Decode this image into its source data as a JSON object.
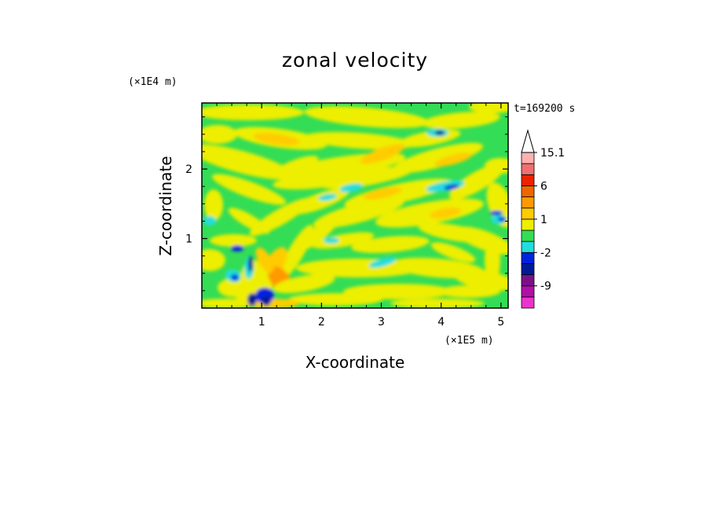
{
  "chart_data": {
    "type": "heatmap",
    "title": "zonal velocity",
    "xlabel": "X-coordinate",
    "ylabel": "Z-coordinate",
    "x_scale_note": "(×1E5 m)",
    "y_scale_note": "(×1E4 m)",
    "time_label": "t=169200 s",
    "x_ticks": [
      1,
      2,
      3,
      4,
      5
    ],
    "y_ticks": [
      1,
      2
    ],
    "xlim": [
      0.0,
      5.12
    ],
    "ylim": [
      0.0,
      2.95
    ],
    "colorbar": {
      "labels": [
        "15.1",
        "6",
        "1",
        "-2",
        "-9"
      ],
      "levels": [
        -15,
        -12,
        -9,
        -6,
        -3,
        -2,
        -1,
        0,
        1,
        2,
        3,
        6,
        9,
        12,
        15.1
      ],
      "colors": [
        "#ee33cc",
        "#b010a8",
        "#7a1088",
        "#001a99",
        "#0022dd",
        "#22dddd",
        "#33dd55",
        "#eeee00",
        "#ffcc00",
        "#ff9900",
        "#ee6600",
        "#ee2200",
        "#f07070",
        "#ffb0b0"
      ]
    }
  }
}
